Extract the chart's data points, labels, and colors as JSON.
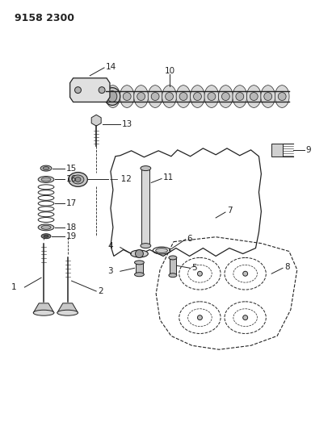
{
  "title": "9158 2300",
  "bg_color": "#ffffff",
  "line_color": "#222222",
  "title_fontsize": 9,
  "label_fontsize": 7.5,
  "fig_width": 4.11,
  "fig_height": 5.33
}
